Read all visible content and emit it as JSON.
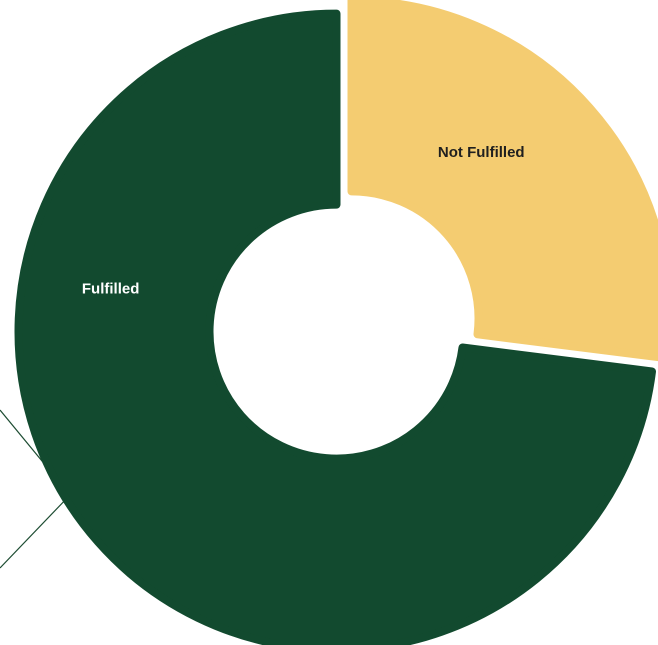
{
  "chart_data": {
    "type": "pie",
    "donut": true,
    "title": "",
    "legend": "none",
    "slices": [
      {
        "label": "Not Fulfilled",
        "value": 27,
        "color": "#f4cc71",
        "label_color": "#1f1f1f"
      },
      {
        "label": "Fulfilled",
        "value": 73,
        "color": "#124a2f",
        "label_color": "#ffffff"
      }
    ]
  },
  "colors": {
    "background": "#ffffff",
    "accent_line": "#1e4d33"
  }
}
